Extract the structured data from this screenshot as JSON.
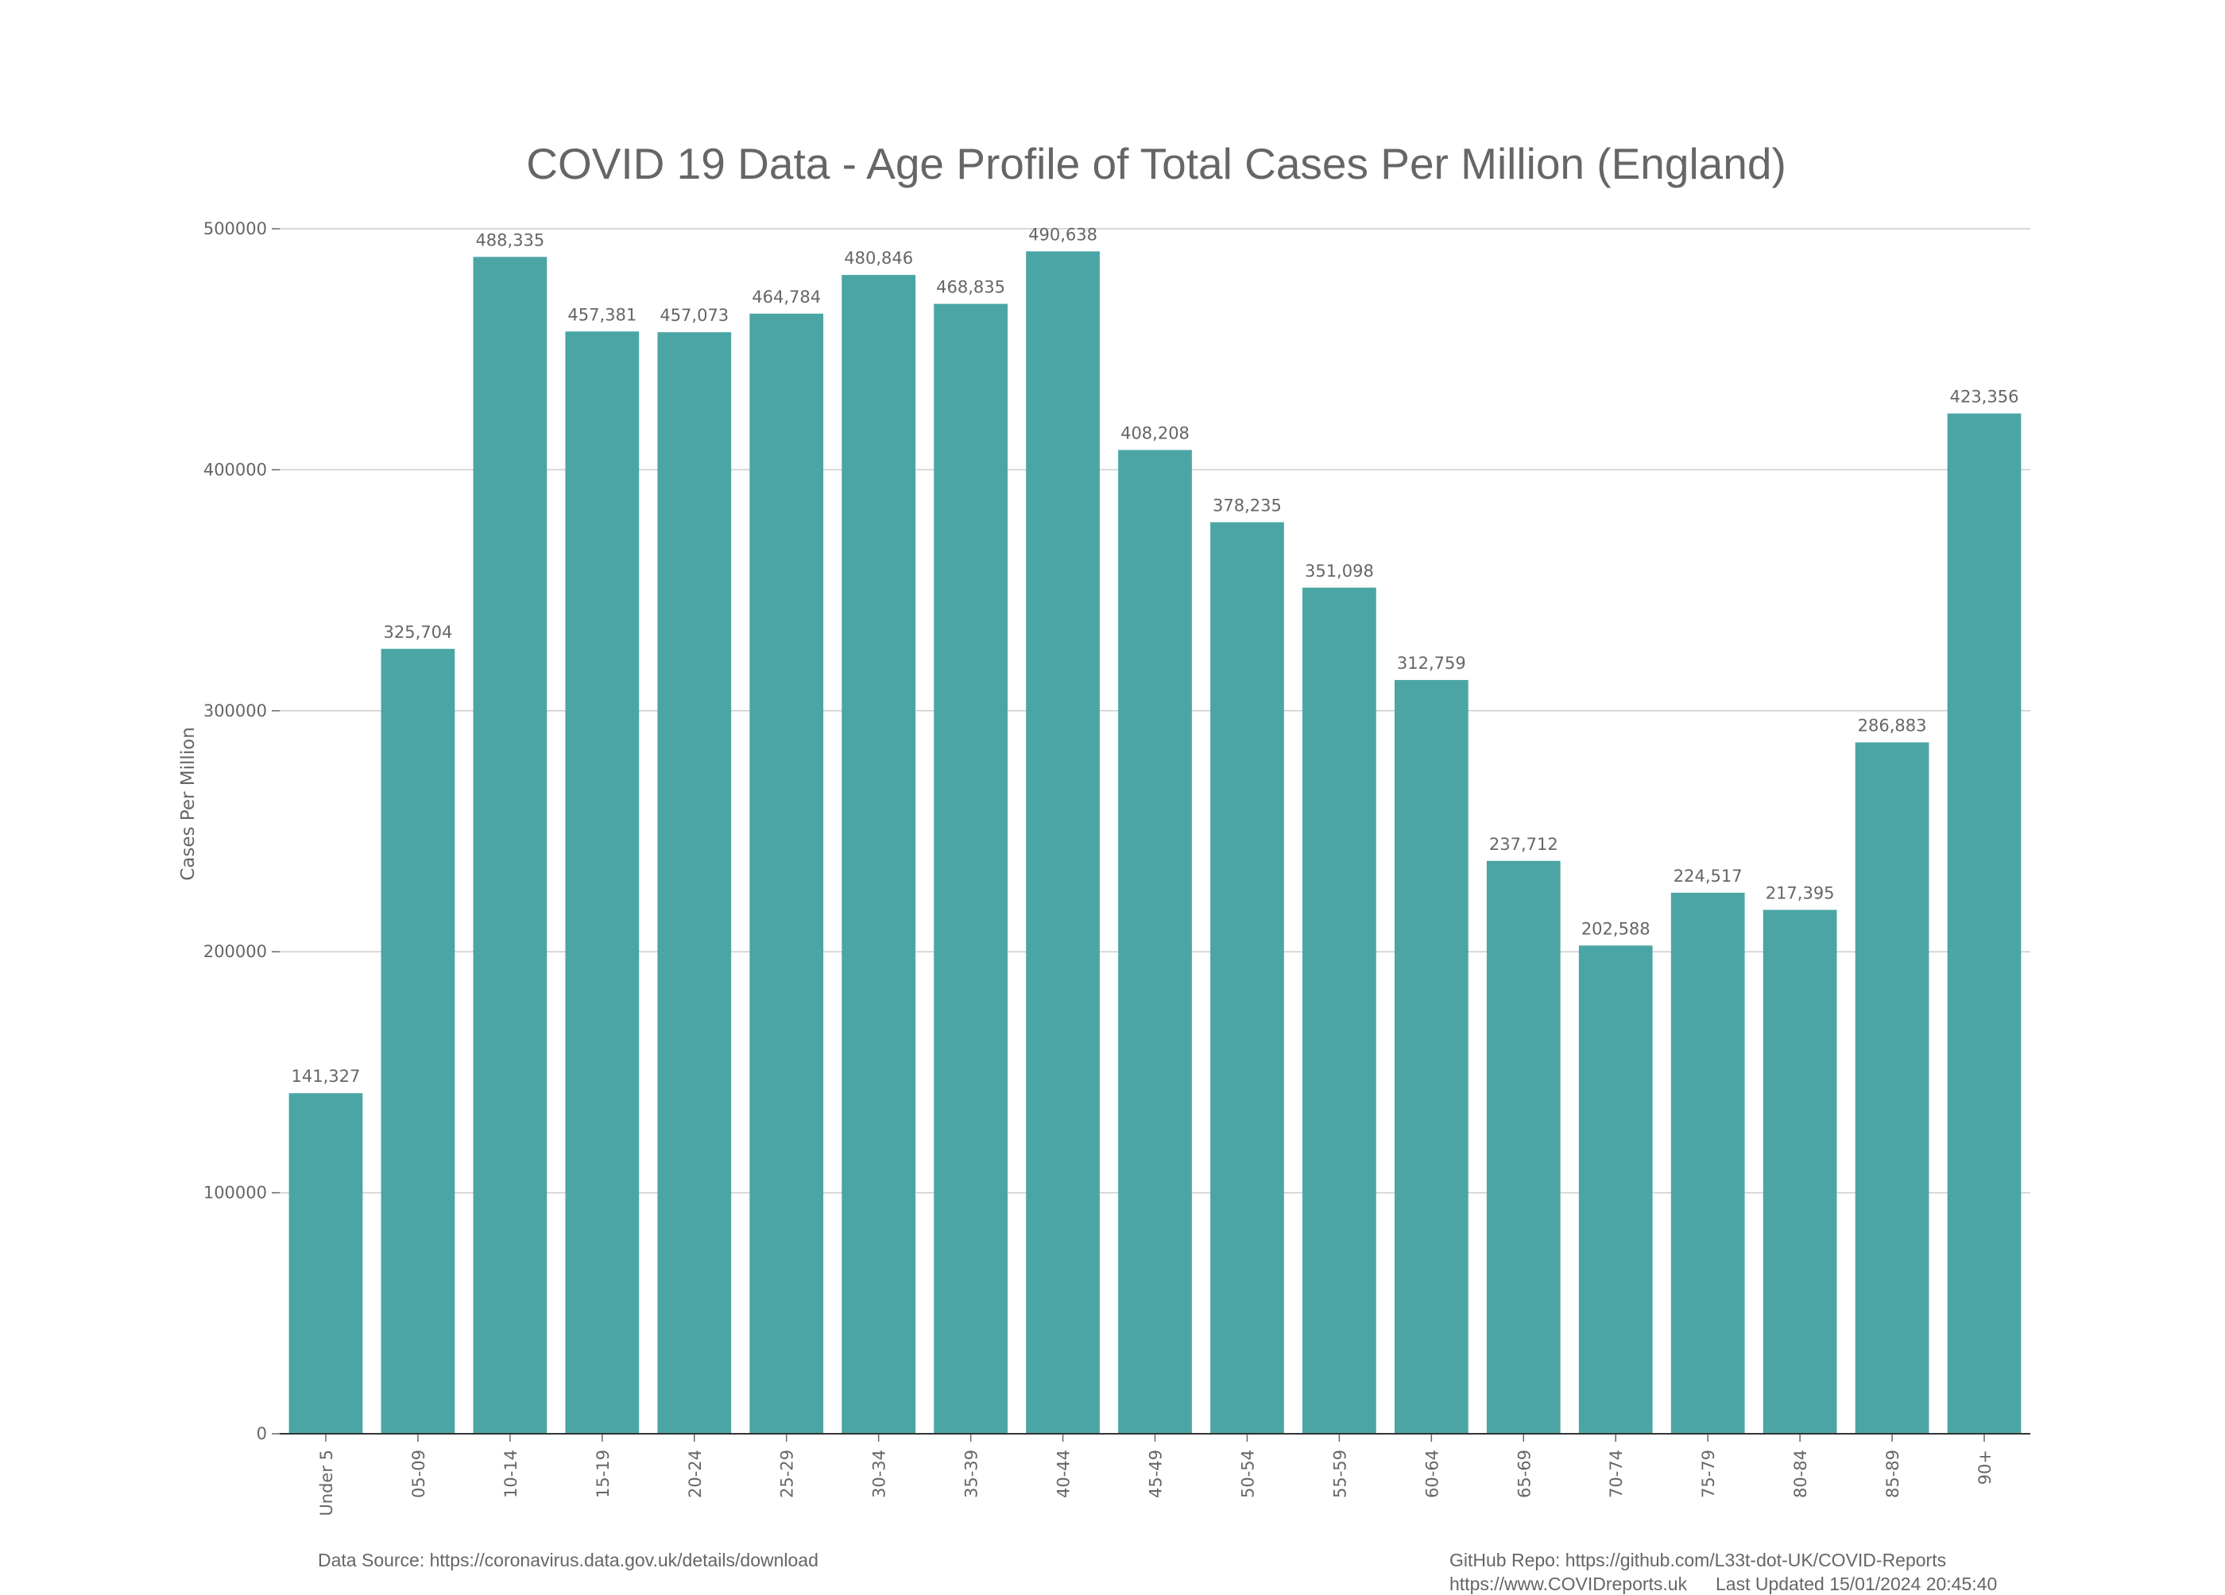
{
  "chart_data": {
    "type": "bar",
    "title": "COVID 19 Data - Age Profile of Total Cases Per Million (England)",
    "xlabel": "",
    "ylabel": "Cases Per Million",
    "ylim": [
      0,
      500000
    ],
    "yticks": [
      "0",
      "100000",
      "200000",
      "300000",
      "400000",
      "500000"
    ],
    "grid": true,
    "categories": [
      "Under 5",
      "05-09",
      "10-14",
      "15-19",
      "20-24",
      "25-29",
      "30-34",
      "35-39",
      "40-44",
      "45-49",
      "50-54",
      "55-59",
      "60-64",
      "65-69",
      "70-74",
      "75-79",
      "80-84",
      "85-89",
      "90+"
    ],
    "values": [
      141327,
      325704,
      488335,
      457381,
      457073,
      464784,
      480846,
      468835,
      490638,
      408208,
      378235,
      351098,
      312759,
      237712,
      202588,
      224517,
      217395,
      286883,
      423356
    ],
    "value_labels": [
      "141,327",
      "325,704",
      "488,335",
      "457,381",
      "457,073",
      "464,784",
      "480,846",
      "468,835",
      "490,638",
      "408,208",
      "378,235",
      "351,098",
      "312,759",
      "237,712",
      "202,588",
      "224,517",
      "217,395",
      "286,883",
      "423,356"
    ],
    "bar_color": "#4ca5a5"
  },
  "footer": {
    "source": "Data Source: https://coronavirus.data.gov.uk/details/download",
    "repo": "GitHub Repo: https://github.com/L33t-dot-UK/COVID-Reports",
    "site": "https://www.COVIDreports.uk",
    "updated": "Last Updated 15/01/2024 20:45:40"
  }
}
